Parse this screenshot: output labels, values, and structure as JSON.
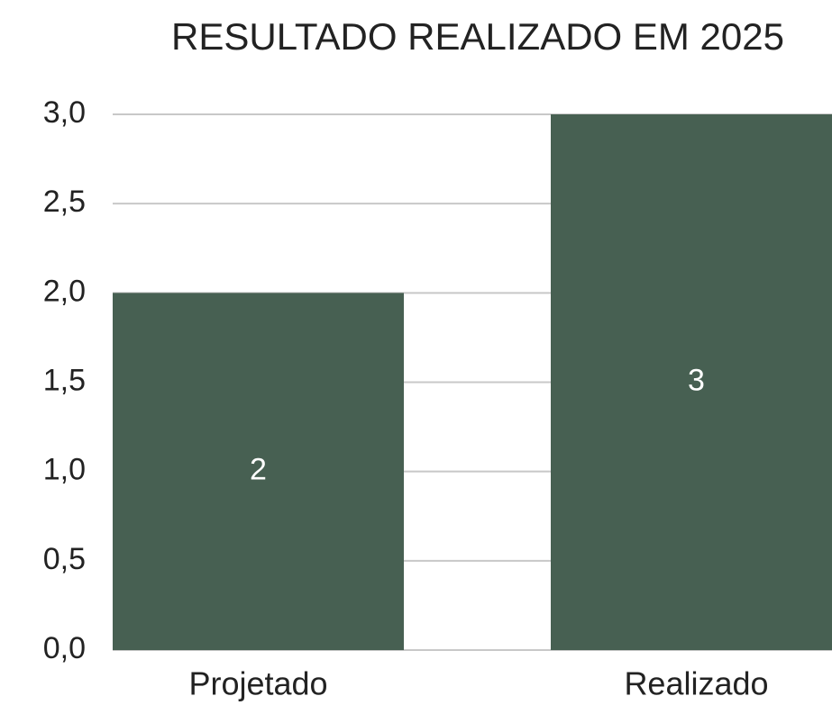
{
  "chart_data": {
    "type": "bar",
    "title": "RESULTADO REALIZADO EM 2025",
    "categories": [
      "Projetado",
      "Realizado"
    ],
    "values": [
      2,
      3
    ],
    "color": "#476052",
    "ylim": [
      0,
      3
    ],
    "yticks": [
      {
        "value": 0,
        "label": "0,0"
      },
      {
        "value": 0.5,
        "label": "0,5"
      },
      {
        "value": 1,
        "label": "1,0"
      },
      {
        "value": 1.5,
        "label": "1,5"
      },
      {
        "value": 2,
        "label": "2,0"
      },
      {
        "value": 2.5,
        "label": "2,5"
      },
      {
        "value": 3,
        "label": "3,0"
      }
    ],
    "grid": true
  }
}
